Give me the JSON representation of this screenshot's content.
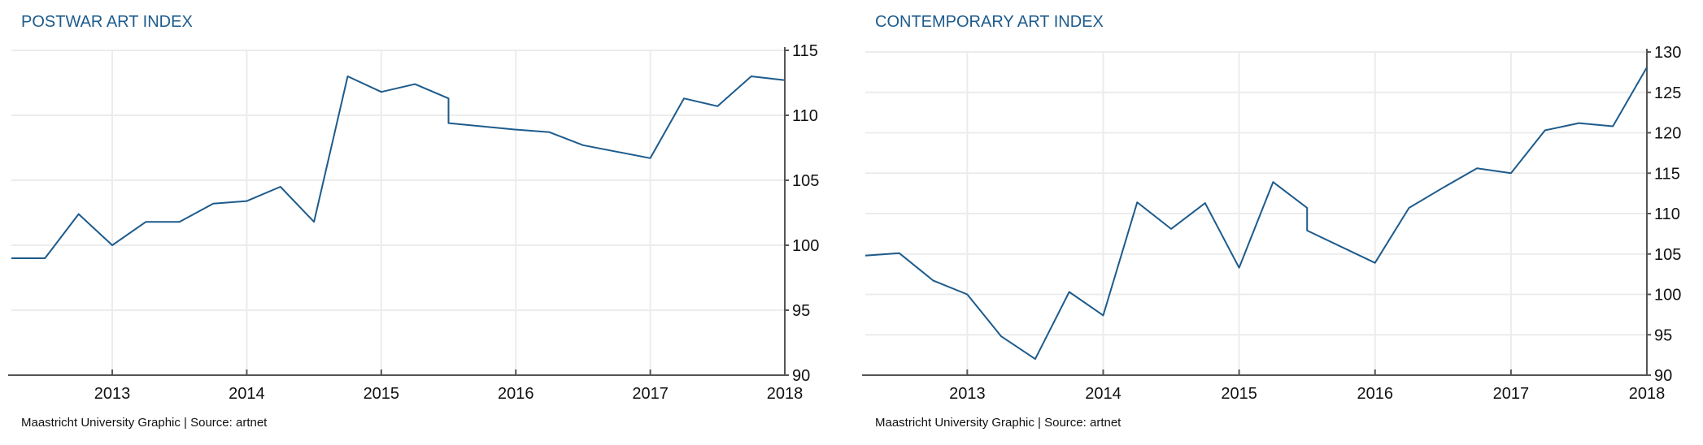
{
  "chart_data": [
    {
      "type": "line",
      "title": "POSTWAR ART INDEX",
      "source": "Maastricht University Graphic | Source: artnet",
      "xlim": [
        2012.25,
        2018
      ],
      "ylim": [
        90,
        115
      ],
      "xticks": [
        2013,
        2014,
        2015,
        2016,
        2017,
        2018
      ],
      "yticks": [
        90,
        95,
        100,
        105,
        110,
        115
      ],
      "y_axis_side": "right",
      "grid": true,
      "line_color": "#1d5b8c",
      "x": [
        2012.25,
        2012.5,
        2012.75,
        2013,
        2013.25,
        2013.5,
        2013.75,
        2014,
        2014.25,
        2014.5,
        2014.75,
        2015,
        2015.25,
        2015.5,
        2015.5,
        2016,
        2016.25,
        2016.5,
        2017,
        2017.25,
        2017.5,
        2017.75,
        2018
      ],
      "y": [
        99.0,
        99.0,
        102.4,
        100.0,
        101.8,
        101.8,
        103.2,
        103.4,
        104.5,
        101.8,
        113.0,
        111.8,
        112.4,
        111.3,
        109.4,
        108.9,
        108.7,
        107.7,
        106.7,
        111.3,
        110.7,
        113.0,
        112.7
      ]
    },
    {
      "type": "line",
      "title": "CONTEMPORARY ART INDEX",
      "source": "Maastricht University Graphic | Source: artnet",
      "xlim": [
        2012.25,
        2018
      ],
      "ylim": [
        90,
        130
      ],
      "xticks": [
        2013,
        2014,
        2015,
        2016,
        2017,
        2018
      ],
      "yticks": [
        90,
        95,
        100,
        105,
        110,
        115,
        120,
        125,
        130
      ],
      "y_axis_side": "right",
      "grid": true,
      "line_color": "#1d5b8c",
      "x": [
        2012.25,
        2012.5,
        2012.75,
        2013,
        2013.25,
        2013.5,
        2013.75,
        2014,
        2014.25,
        2014.5,
        2014.75,
        2015,
        2015.25,
        2015.5,
        2015.5,
        2016,
        2016.25,
        2016.5,
        2016.75,
        2017,
        2017.25,
        2017.5,
        2017.75,
        2018
      ],
      "y": [
        104.8,
        105.1,
        101.7,
        100.0,
        94.8,
        92.0,
        100.3,
        97.4,
        111.4,
        108.1,
        111.3,
        103.3,
        113.9,
        110.7,
        107.9,
        103.9,
        110.7,
        113.2,
        115.6,
        115.0,
        120.3,
        121.2,
        120.8,
        128.1
      ]
    }
  ]
}
